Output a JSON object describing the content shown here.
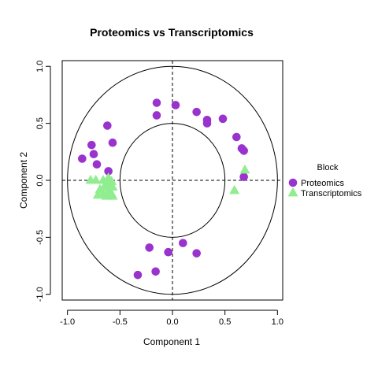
{
  "chart_data": {
    "type": "scatter",
    "title": "Proteomics vs Transcriptomics",
    "xlabel": "Component 1",
    "ylabel": "Component 2",
    "xlim": [
      -1.05,
      1.05
    ],
    "ylim": [
      -1.05,
      1.05
    ],
    "xticks": [
      -1.0,
      -0.5,
      0.0,
      0.5,
      1.0
    ],
    "xtick_labels": [
      "-1.0",
      "-0.5",
      "0.0",
      "0.5",
      "1.0"
    ],
    "yticks": [
      -1.0,
      -0.5,
      0.0,
      0.5,
      1.0
    ],
    "ytick_labels": [
      "-1.0",
      "-0.5",
      "0.0",
      "0.5",
      "1.0"
    ],
    "grid": false,
    "reference_lines": {
      "x": 0,
      "y": 0,
      "style": "dashed"
    },
    "circles": [
      {
        "radius": 1.0
      },
      {
        "radius": 0.5
      }
    ],
    "legend": {
      "title": "Block",
      "placement": "right",
      "entries": [
        {
          "name": "Proteomics",
          "shape": "circle",
          "color": "#9A32CD"
        },
        {
          "name": "Transcriptomics",
          "shape": "triangle",
          "color": "#90EE90"
        }
      ]
    },
    "series": [
      {
        "name": "Proteomics",
        "shape": "circle",
        "color": "#9A32CD",
        "points": [
          {
            "x": -0.15,
            "y": 0.68
          },
          {
            "x": 0.03,
            "y": 0.66
          },
          {
            "x": -0.15,
            "y": 0.57
          },
          {
            "x": 0.23,
            "y": 0.6
          },
          {
            "x": 0.33,
            "y": 0.53
          },
          {
            "x": 0.33,
            "y": 0.5
          },
          {
            "x": 0.48,
            "y": 0.54
          },
          {
            "x": -0.62,
            "y": 0.48
          },
          {
            "x": -0.57,
            "y": 0.33
          },
          {
            "x": -0.77,
            "y": 0.31
          },
          {
            "x": -0.75,
            "y": 0.23
          },
          {
            "x": -0.86,
            "y": 0.19
          },
          {
            "x": -0.72,
            "y": 0.14
          },
          {
            "x": -0.61,
            "y": 0.08
          },
          {
            "x": 0.61,
            "y": 0.38
          },
          {
            "x": 0.66,
            "y": 0.28
          },
          {
            "x": 0.68,
            "y": 0.26
          },
          {
            "x": 0.68,
            "y": 0.03
          },
          {
            "x": -0.22,
            "y": -0.59
          },
          {
            "x": 0.1,
            "y": -0.55
          },
          {
            "x": -0.04,
            "y": -0.63
          },
          {
            "x": 0.23,
            "y": -0.64
          },
          {
            "x": -0.16,
            "y": -0.8
          },
          {
            "x": -0.33,
            "y": -0.83
          }
        ]
      },
      {
        "name": "Transcriptomics",
        "shape": "triangle",
        "color": "#90EE90",
        "points": [
          {
            "x": 0.69,
            "y": 0.09
          },
          {
            "x": 0.59,
            "y": -0.09
          },
          {
            "x": -0.78,
            "y": 0.0
          },
          {
            "x": -0.73,
            "y": 0.0
          },
          {
            "x": -0.66,
            "y": 0.0
          },
          {
            "x": -0.61,
            "y": 0.02
          },
          {
            "x": -0.58,
            "y": -0.01
          },
          {
            "x": -0.62,
            "y": -0.04
          },
          {
            "x": -0.57,
            "y": -0.06
          },
          {
            "x": -0.65,
            "y": -0.06
          },
          {
            "x": -0.69,
            "y": -0.08
          },
          {
            "x": -0.61,
            "y": -0.09
          },
          {
            "x": -0.58,
            "y": -0.12
          },
          {
            "x": -0.66,
            "y": -0.12
          },
          {
            "x": -0.71,
            "y": -0.13
          },
          {
            "x": -0.63,
            "y": -0.14
          },
          {
            "x": -0.57,
            "y": -0.14
          }
        ]
      }
    ]
  }
}
